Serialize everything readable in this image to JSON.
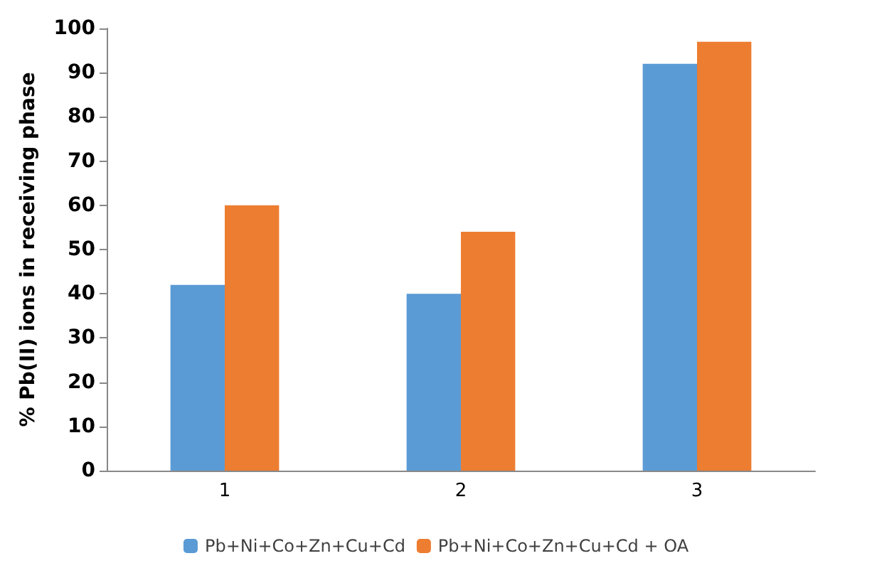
{
  "chart_data": {
    "type": "bar",
    "ylabel": "% Pb(II) ions in receiving phase",
    "categories": [
      "1",
      "2",
      "3"
    ],
    "series": [
      {
        "name": "Pb+Ni+Co+Zn+Cu+Cd",
        "color": "#5b9bd5",
        "values": [
          42,
          40,
          92
        ]
      },
      {
        "name": "Pb+Ni+Co+Zn+Cu+Cd + OA",
        "color": "#ed7d31",
        "values": [
          60,
          54,
          97
        ]
      }
    ],
    "ylim": [
      0,
      100
    ],
    "yticks": [
      0,
      10,
      20,
      30,
      40,
      50,
      60,
      70,
      80,
      90,
      100
    ],
    "grid": false,
    "legend": "bottom"
  }
}
